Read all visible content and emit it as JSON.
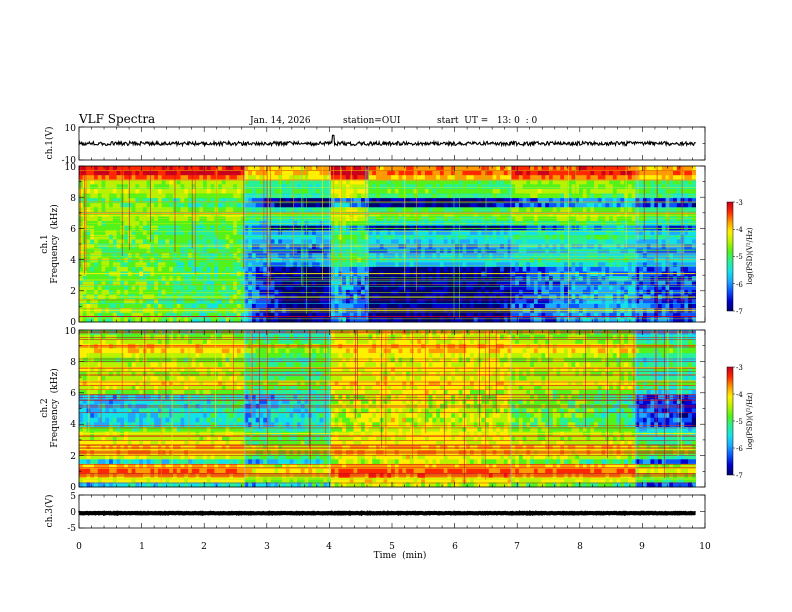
{
  "header": {
    "title": "VLF Spectra",
    "date": "Jan. 14, 2026",
    "station": "station=OUI",
    "start_ut": "start  UT =   13: 0  : 0"
  },
  "colors": {
    "scale": [
      "#00006e",
      "#0000cc",
      "#0a55ff",
      "#1ea8ff",
      "#12e2e8",
      "#28f096",
      "#52f21a",
      "#b8f200",
      "#fff000",
      "#ff9a00",
      "#ff2800",
      "#c8001e"
    ]
  },
  "chart_data": [
    {
      "type": "line",
      "panel": "ch1-waveform",
      "ylabel": "ch.1(V)",
      "ylim": [
        -10,
        10
      ],
      "y_ticks": [
        "10",
        "-10"
      ],
      "x_range_min": [
        0,
        10
      ],
      "trace": {
        "mean": 0,
        "amplitude": 1.2,
        "spike_at_min": 4.06,
        "spike_peak": 5
      }
    },
    {
      "type": "heatmap",
      "panel": "ch1-spectrogram",
      "ylabel_line1": "ch.1",
      "ylabel_line2": "Frequency  (kHz)",
      "ylim": [
        0,
        10
      ],
      "y_ticks": [
        "0",
        "2",
        "4",
        "6",
        "8",
        "10"
      ],
      "x_range_min": [
        0,
        9.85
      ],
      "colorbar": {
        "label": "log(PSD)(V²/Hz)",
        "range": [
          -7,
          -3
        ],
        "ticks": [
          "-3",
          "-4",
          "-5",
          "-6",
          "-7"
        ]
      },
      "baseline": [
        [
          0,
          -4.9
        ],
        [
          0.5,
          -5.1
        ],
        [
          1.0,
          -5.0
        ],
        [
          2.0,
          -5.5
        ],
        [
          2.5,
          -5.2
        ],
        [
          3.2,
          -6.3
        ],
        [
          3.6,
          -6.6
        ],
        [
          4.0,
          -6.4
        ],
        [
          4.6,
          -6.9
        ],
        [
          5.0,
          -6.8
        ],
        [
          7.0,
          -6.6
        ],
        [
          8.0,
          -6.2
        ],
        [
          9.0,
          -5.9
        ],
        [
          10.0,
          -6.2
        ]
      ],
      "bands": [
        {
          "freq_khz": 0.35,
          "psd": -3.3
        },
        {
          "freq_khz": 0.75,
          "psd": -4.4
        },
        {
          "freq_khz": 1.6,
          "psd": -4.6
        },
        {
          "freq_khz": 3.1,
          "psd": -4.5
        },
        {
          "freq_khz": 4.6,
          "psd": -5.2
        },
        {
          "freq_khz": 6.0,
          "psd": -5.3
        }
      ],
      "time_segments": [
        {
          "start_min": 0,
          "end_min": 2.65,
          "psd_boost": 0.3
        },
        {
          "start_min": 2.65,
          "end_min": 4.0,
          "psd_boost": -0.5
        },
        {
          "start_min": 4.0,
          "end_min": 4.6,
          "psd_boost": 0.6
        },
        {
          "start_min": 4.6,
          "end_min": 6.9,
          "psd_boost": -0.2
        },
        {
          "start_min": 6.9,
          "end_min": 8.9,
          "psd_boost": 0.2
        },
        {
          "start_min": 8.9,
          "end_min": 9.85,
          "psd_boost": -0.3
        }
      ]
    },
    {
      "type": "heatmap",
      "panel": "ch2-spectrogram",
      "ylabel_line1": "ch.2",
      "ylabel_line2": "Frequency  (kHz)",
      "ylim": [
        0,
        10
      ],
      "y_ticks": [
        "0",
        "2",
        "4",
        "6",
        "8",
        "10"
      ],
      "x_range_min": [
        0,
        9.85
      ],
      "colorbar": {
        "label": "log(PSD)(V²/Hz)",
        "range": [
          -7,
          -3
        ],
        "ticks": [
          "-3",
          "-4",
          "-5",
          "-6",
          "-7"
        ]
      },
      "baseline": [
        [
          0,
          -6.2
        ],
        [
          1.5,
          -5.9
        ],
        [
          2.65,
          -5.7
        ],
        [
          3.0,
          -5.4
        ],
        [
          4.0,
          -5.0
        ],
        [
          5.0,
          -4.8
        ],
        [
          7.0,
          -5.0
        ],
        [
          8.0,
          -5.2
        ],
        [
          9.0,
          -5.6
        ],
        [
          10.0,
          -5.9
        ]
      ],
      "bands": [
        {
          "freq_khz": 9.0,
          "psd": -3.8
        },
        {
          "freq_khz": 7.6,
          "psd": -4.1
        },
        {
          "freq_khz": 6.75,
          "psd": -4.6
        },
        {
          "freq_khz": 3.4,
          "psd": -4.4
        },
        {
          "freq_khz": 2.4,
          "psd": -4.5
        },
        {
          "freq_khz": 1.2,
          "psd": -4.2
        },
        {
          "freq_khz": 0.5,
          "psd": -4.9
        }
      ],
      "time_segments": [
        {
          "start_min": 0,
          "end_min": 2.65,
          "psd_boost": 0.4
        },
        {
          "start_min": 2.65,
          "end_min": 4.0,
          "psd_boost": -0.3
        },
        {
          "start_min": 4.0,
          "end_min": 6.9,
          "psd_boost": 0.5
        },
        {
          "start_min": 6.9,
          "end_min": 8.9,
          "psd_boost": 0.3
        },
        {
          "start_min": 8.9,
          "end_min": 9.85,
          "psd_boost": -0.6
        }
      ]
    },
    {
      "type": "line",
      "panel": "ch3-waveform",
      "ylabel": "ch.3(V)",
      "ylim": [
        -5,
        5
      ],
      "y_ticks": [
        "5",
        "0",
        "-5"
      ],
      "x_range_min": [
        0,
        10
      ],
      "trace": {
        "mean": -0.5,
        "amplitude": 0.1
      }
    }
  ],
  "time_axis": {
    "label": "Time  (min)",
    "range": [
      0,
      10
    ],
    "ticks": [
      "0",
      "1",
      "2",
      "3",
      "4",
      "5",
      "6",
      "7",
      "8",
      "9",
      "10"
    ]
  }
}
